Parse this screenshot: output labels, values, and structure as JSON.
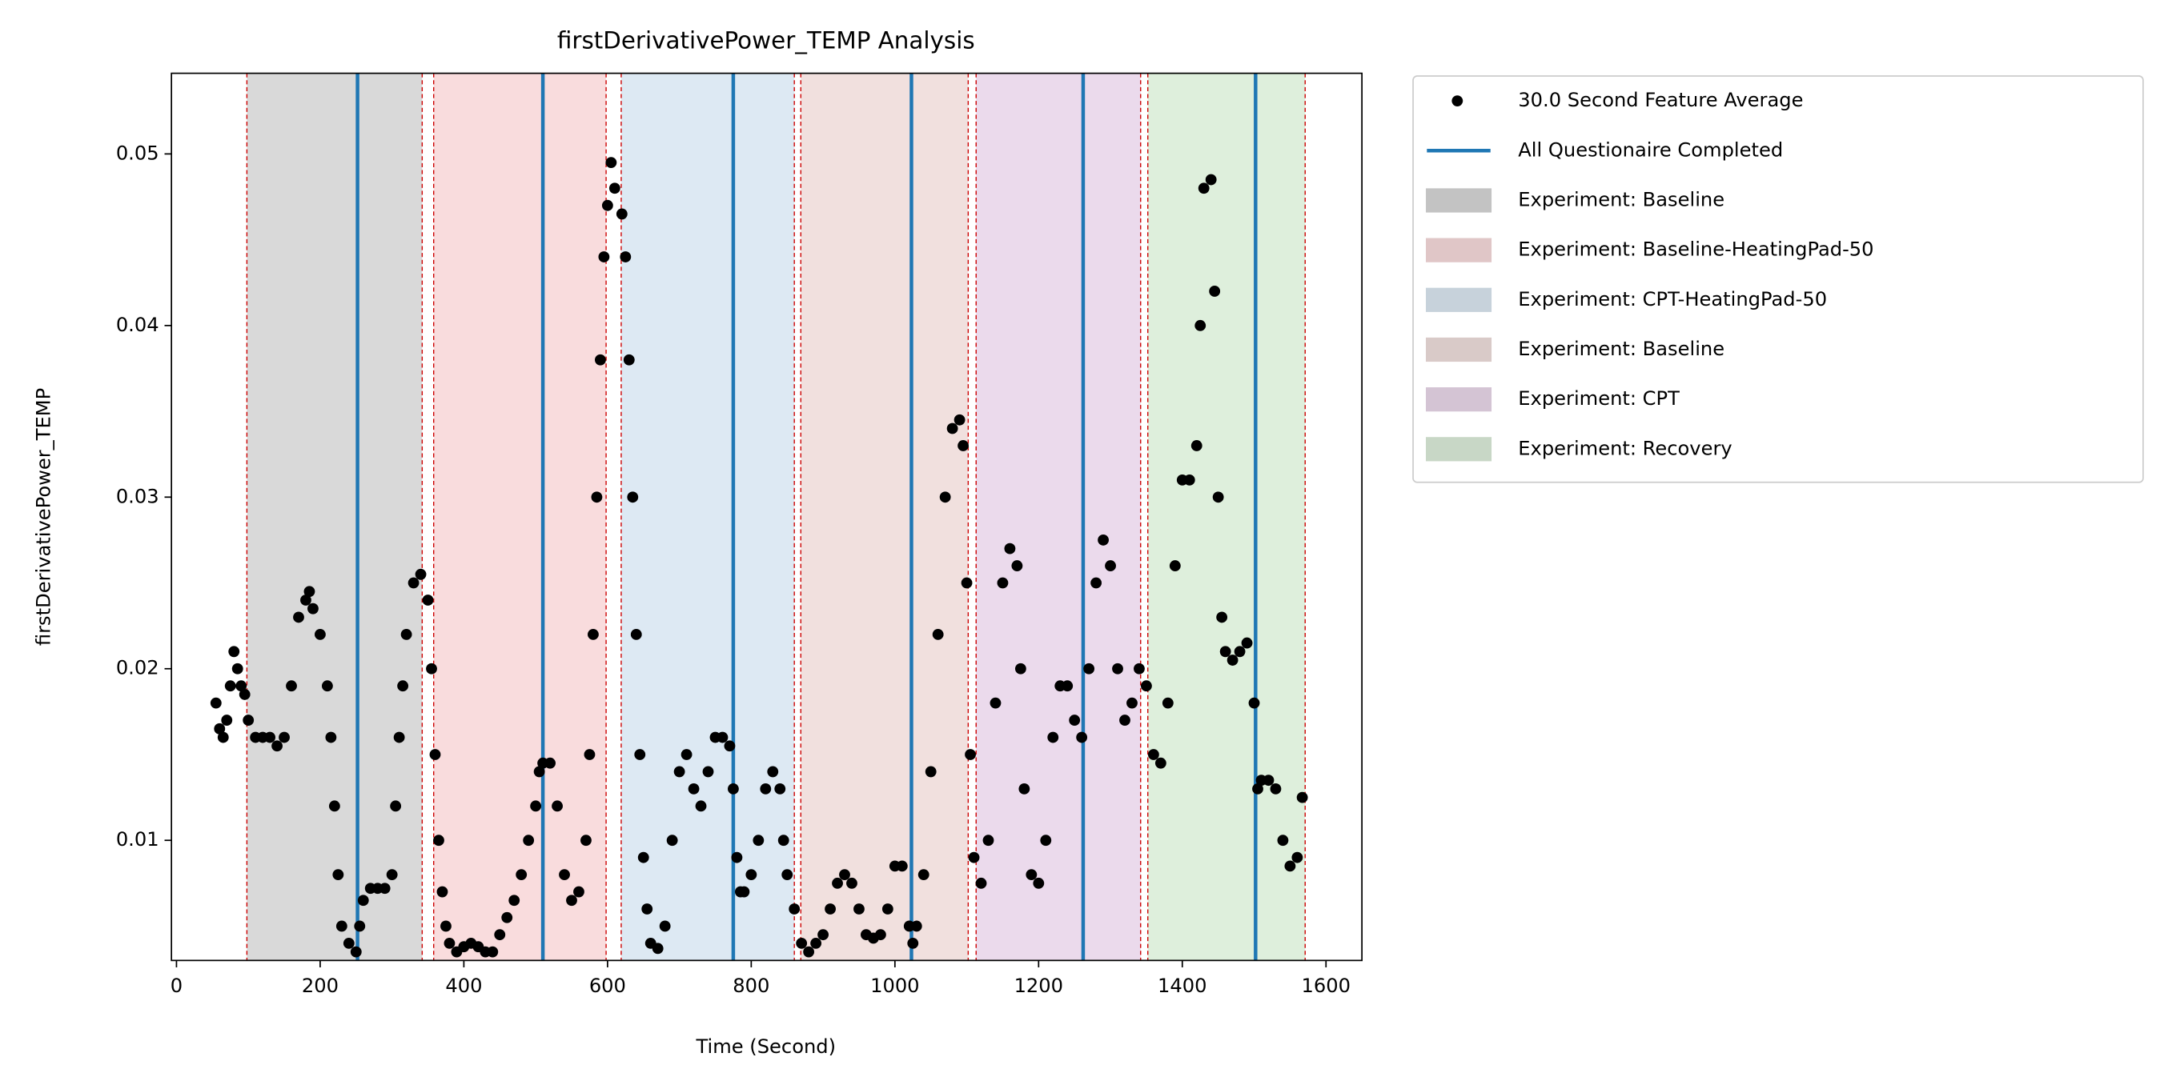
{
  "chart_data": {
    "type": "scatter",
    "title": "firstDerivativePower_TEMP Analysis",
    "xlabel": "Time (Second)",
    "ylabel": "firstDerivativePower_TEMP",
    "xlim": [
      -7,
      1650
    ],
    "ylim": [
      0.003,
      0.0547
    ],
    "xticks": [
      0,
      200,
      400,
      600,
      800,
      1000,
      1200,
      1400,
      1600
    ],
    "yticks": [
      0.01,
      0.02,
      0.03,
      0.04,
      0.05
    ],
    "legend": "outside right",
    "series": [
      {
        "name": "30.0 Second Feature Average",
        "color": "#000000",
        "x": [
          55,
          60,
          65,
          70,
          75,
          80,
          85,
          90,
          95,
          100,
          110,
          120,
          130,
          140,
          150,
          160,
          170,
          180,
          185,
          190,
          200,
          210,
          215,
          220,
          225,
          230,
          240,
          250,
          255,
          260,
          270,
          280,
          290,
          300,
          305,
          310,
          315,
          320,
          330,
          340,
          350,
          355,
          360,
          365,
          370,
          375,
          380,
          390,
          400,
          410,
          420,
          430,
          440,
          450,
          460,
          470,
          480,
          490,
          500,
          505,
          510,
          520,
          530,
          540,
          550,
          560,
          570,
          575,
          580,
          585,
          590,
          595,
          600,
          605,
          610,
          620,
          625,
          630,
          635,
          640,
          645,
          650,
          655,
          660,
          670,
          680,
          690,
          700,
          710,
          720,
          730,
          740,
          750,
          760,
          770,
          775,
          780,
          785,
          790,
          800,
          810,
          820,
          830,
          840,
          845,
          850,
          860,
          870,
          880,
          890,
          900,
          910,
          920,
          930,
          940,
          950,
          960,
          970,
          980,
          990,
          1000,
          1010,
          1020,
          1025,
          1030,
          1040,
          1050,
          1060,
          1070,
          1080,
          1090,
          1095,
          1100,
          1105,
          1110,
          1120,
          1130,
          1140,
          1150,
          1160,
          1170,
          1175,
          1180,
          1190,
          1200,
          1210,
          1220,
          1230,
          1240,
          1250,
          1260,
          1270,
          1280,
          1290,
          1300,
          1310,
          1320,
          1330,
          1340,
          1350,
          1360,
          1370,
          1380,
          1390,
          1400,
          1410,
          1420,
          1425,
          1430,
          1440,
          1445,
          1450,
          1455,
          1460,
          1470,
          1480,
          1490,
          1500,
          1505,
          1510,
          1520,
          1530,
          1540,
          1550,
          1560,
          1567
        ],
        "values": [
          0.018,
          0.0165,
          0.016,
          0.017,
          0.019,
          0.021,
          0.02,
          0.019,
          0.0185,
          0.017,
          0.016,
          0.016,
          0.016,
          0.0155,
          0.016,
          0.019,
          0.023,
          0.024,
          0.0245,
          0.0235,
          0.022,
          0.019,
          0.016,
          0.012,
          0.008,
          0.005,
          0.004,
          0.0035,
          0.005,
          0.0065,
          0.0072,
          0.0072,
          0.0072,
          0.008,
          0.012,
          0.016,
          0.019,
          0.022,
          0.025,
          0.0255,
          0.024,
          0.02,
          0.015,
          0.01,
          0.007,
          0.005,
          0.004,
          0.0035,
          0.0038,
          0.004,
          0.0038,
          0.0035,
          0.0035,
          0.0045,
          0.0055,
          0.0065,
          0.008,
          0.01,
          0.012,
          0.014,
          0.0145,
          0.0145,
          0.012,
          0.008,
          0.0065,
          0.007,
          0.01,
          0.015,
          0.022,
          0.03,
          0.038,
          0.044,
          0.047,
          0.0495,
          0.048,
          0.0465,
          0.044,
          0.038,
          0.03,
          0.022,
          0.015,
          0.009,
          0.006,
          0.004,
          0.0037,
          0.005,
          0.01,
          0.014,
          0.015,
          0.013,
          0.012,
          0.014,
          0.016,
          0.016,
          0.0155,
          0.013,
          0.009,
          0.007,
          0.007,
          0.008,
          0.01,
          0.013,
          0.014,
          0.013,
          0.01,
          0.008,
          0.006,
          0.004,
          0.0035,
          0.004,
          0.0045,
          0.006,
          0.0075,
          0.008,
          0.0075,
          0.006,
          0.0045,
          0.0043,
          0.0045,
          0.006,
          0.0085,
          0.0085,
          0.005,
          0.004,
          0.005,
          0.008,
          0.014,
          0.022,
          0.03,
          0.034,
          0.0345,
          0.033,
          0.025,
          0.015,
          0.009,
          0.0075,
          0.01,
          0.018,
          0.025,
          0.027,
          0.026,
          0.02,
          0.013,
          0.008,
          0.0075,
          0.01,
          0.016,
          0.019,
          0.019,
          0.017,
          0.016,
          0.02,
          0.025,
          0.0275,
          0.026,
          0.02,
          0.017,
          0.018,
          0.02,
          0.019,
          0.015,
          0.0145,
          0.018,
          0.026,
          0.031,
          0.031,
          0.033,
          0.04,
          0.048,
          0.0485,
          0.042,
          0.03,
          0.023,
          0.021,
          0.0205,
          0.021,
          0.0215,
          0.018,
          0.013,
          0.0135,
          0.0135,
          0.013,
          0.01,
          0.0085,
          0.009,
          0.0125
        ]
      }
    ],
    "vlines": {
      "name": "All Questionaire Completed",
      "color": "#1f77b4",
      "x": [
        252,
        510,
        775,
        1023,
        1262,
        1502
      ]
    },
    "region_edge_color": "#cc0000",
    "regions": [
      {
        "name": "Experiment: Baseline",
        "start": 98,
        "end": 342,
        "color": "#d9d9d9"
      },
      {
        "name": "Experiment: Baseline-HeatingPad-50",
        "start": 358,
        "end": 598,
        "color": "#f9dcdd"
      },
      {
        "name": "Experiment: CPT-HeatingPad-50",
        "start": 619,
        "end": 860,
        "color": "#dde9f3"
      },
      {
        "name": "Experiment: Baseline",
        "start": 869,
        "end": 1102,
        "color": "#f1e0de"
      },
      {
        "name": "Experiment: CPT",
        "start": 1113,
        "end": 1342,
        "color": "#ebdaec"
      },
      {
        "name": "Experiment: Recovery",
        "start": 1352,
        "end": 1571,
        "color": "#deefdc"
      }
    ]
  }
}
